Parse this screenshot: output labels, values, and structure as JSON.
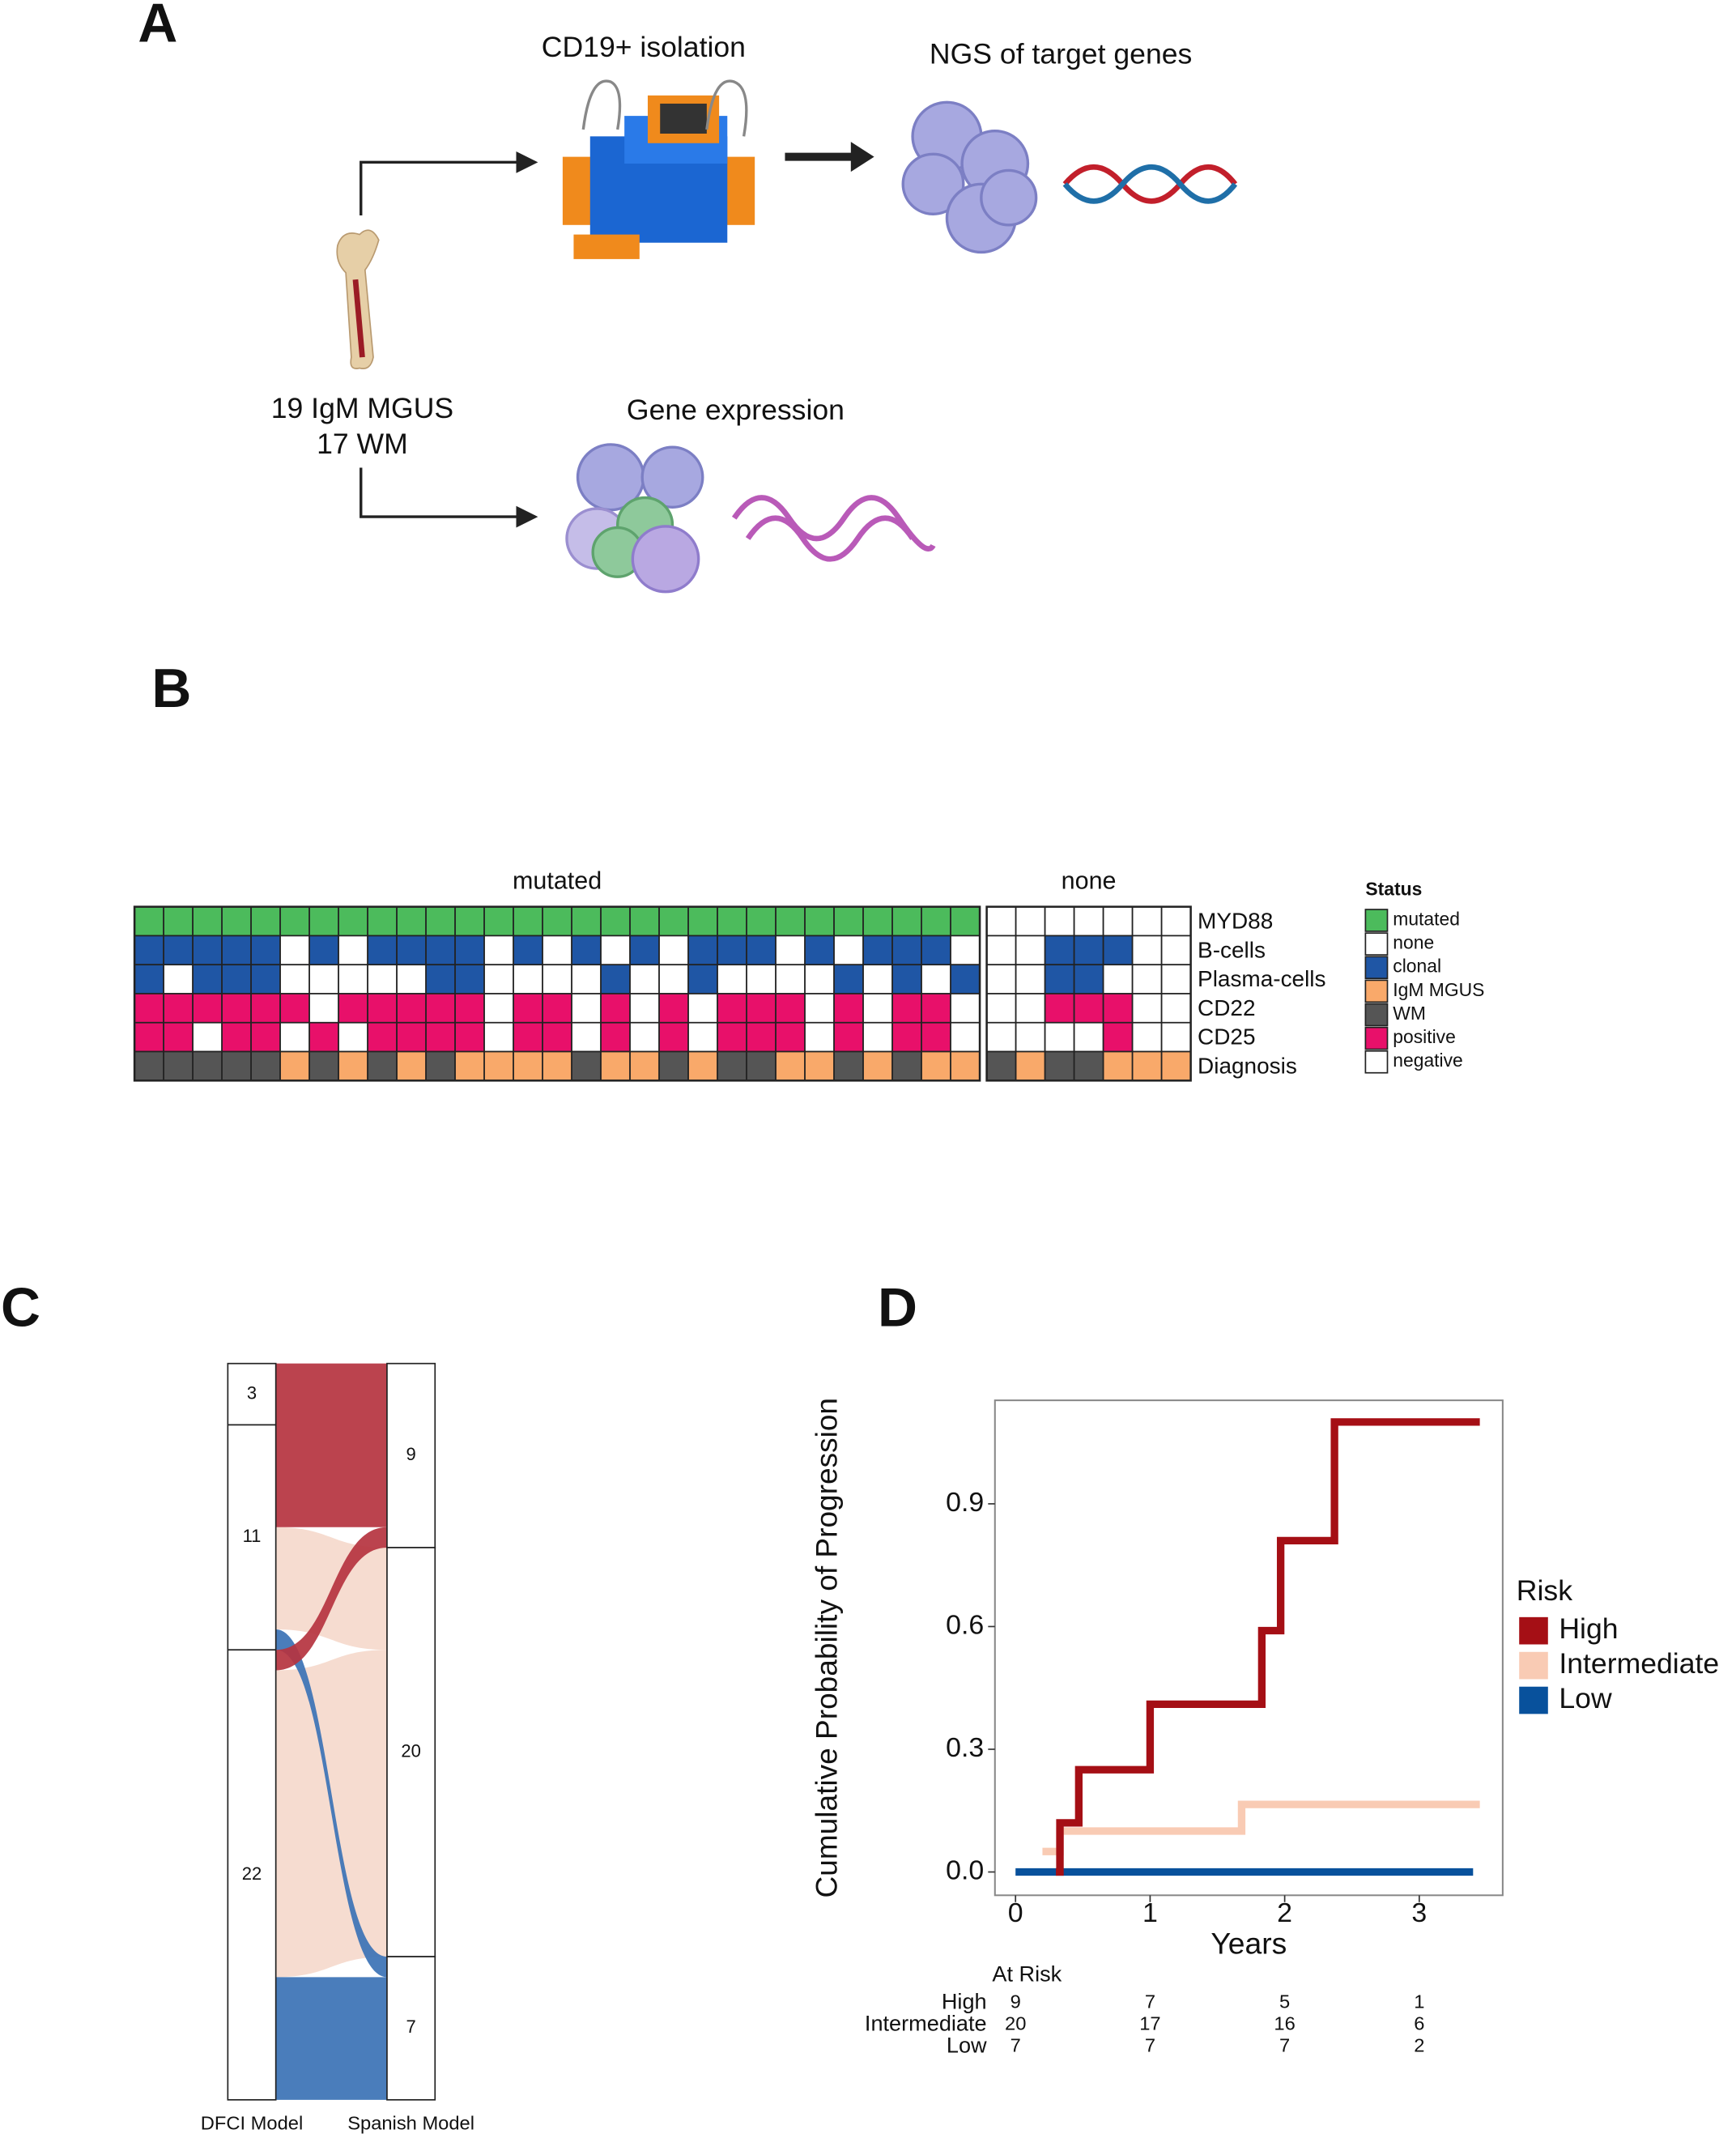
{
  "panel_a": {
    "label": "A",
    "isolation": "CD19+ isolation",
    "ngs": "NGS of target genes",
    "cohort": [
      "19 IgM MGUS",
      "17 WM"
    ],
    "expression": "Gene expression"
  },
  "panel_b": {
    "label": "B",
    "chart_data": {
      "type": "heatmap",
      "groups": [
        "mutated",
        "none"
      ],
      "rows": [
        {
          "label": "MYD88",
          "values": [
            [
              "mutated",
              "mutated",
              "mutated",
              "mutated",
              "mutated",
              "mutated",
              "mutated",
              "mutated",
              "mutated",
              "mutated",
              "mutated",
              "mutated",
              "mutated",
              "mutated",
              "mutated",
              "mutated",
              "mutated",
              "mutated",
              "mutated",
              "mutated",
              "mutated",
              "mutated",
              "mutated",
              "mutated",
              "mutated",
              "mutated",
              "mutated",
              "mutated",
              "mutated"
            ],
            [
              "none",
              "none",
              "none",
              "none",
              "none",
              "none",
              "none"
            ]
          ]
        },
        {
          "label": "B-cells",
          "values": [
            [
              "clonal",
              "clonal",
              "clonal",
              "clonal",
              "clonal",
              "none",
              "clonal",
              "none",
              "clonal",
              "clonal",
              "clonal",
              "clonal",
              "none",
              "clonal",
              "none",
              "clonal",
              "none",
              "clonal",
              "none",
              "clonal",
              "clonal",
              "clonal",
              "none",
              "clonal",
              "none",
              "clonal",
              "clonal",
              "clonal",
              "none"
            ],
            [
              "none",
              "none",
              "clonal",
              "clonal",
              "clonal",
              "none",
              "none"
            ]
          ]
        },
        {
          "label": "Plasma-cells",
          "values": [
            [
              "clonal",
              "none",
              "clonal",
              "clonal",
              "clonal",
              "none",
              "none",
              "none",
              "none",
              "none",
              "clonal",
              "clonal",
              "none",
              "none",
              "none",
              "none",
              "clonal",
              "none",
              "none",
              "clonal",
              "none",
              "none",
              "none",
              "none",
              "clonal",
              "none",
              "clonal",
              "none",
              "clonal"
            ],
            [
              "none",
              "none",
              "clonal",
              "clonal",
              "none",
              "none",
              "none"
            ]
          ]
        },
        {
          "label": "CD22",
          "values": [
            [
              "positive",
              "positive",
              "positive",
              "positive",
              "positive",
              "positive",
              "negative",
              "positive",
              "positive",
              "positive",
              "positive",
              "positive",
              "negative",
              "positive",
              "positive",
              "negative",
              "positive",
              "negative",
              "positive",
              "negative",
              "positive",
              "positive",
              "positive",
              "negative",
              "positive",
              "negative",
              "positive",
              "positive",
              "negative"
            ],
            [
              "negative",
              "negative",
              "positive",
              "positive",
              "positive",
              "negative",
              "negative"
            ]
          ]
        },
        {
          "label": "CD25",
          "values": [
            [
              "positive",
              "positive",
              "negative",
              "positive",
              "positive",
              "negative",
              "positive",
              "negative",
              "positive",
              "positive",
              "positive",
              "positive",
              "negative",
              "positive",
              "positive",
              "negative",
              "positive",
              "negative",
              "positive",
              "negative",
              "positive",
              "positive",
              "positive",
              "negative",
              "positive",
              "negative",
              "positive",
              "positive",
              "negative"
            ],
            [
              "negative",
              "negative",
              "negative",
              "negative",
              "positive",
              "negative",
              "negative"
            ]
          ]
        },
        {
          "label": "Diagnosis",
          "values": [
            [
              "WM",
              "WM",
              "WM",
              "WM",
              "WM",
              "IgM MGUS",
              "WM",
              "IgM MGUS",
              "WM",
              "IgM MGUS",
              "WM",
              "IgM MGUS",
              "IgM MGUS",
              "IgM MGUS",
              "IgM MGUS",
              "WM",
              "IgM MGUS",
              "IgM MGUS",
              "WM",
              "IgM MGUS",
              "WM",
              "WM",
              "IgM MGUS",
              "IgM MGUS",
              "WM",
              "IgM MGUS",
              "WM",
              "IgM MGUS",
              "IgM MGUS"
            ],
            [
              "WM",
              "IgM MGUS",
              "WM",
              "WM",
              "IgM MGUS",
              "IgM MGUS",
              "IgM MGUS"
            ]
          ]
        }
      ],
      "legend": {
        "title": "Status",
        "items": [
          {
            "label": "mutated",
            "color": "#4cbb5c"
          },
          {
            "label": "none",
            "color": "#ffffff"
          },
          {
            "label": "clonal",
            "color": "#1f56a5"
          },
          {
            "label": "IgM MGUS",
            "color": "#f9a96a"
          },
          {
            "label": "WM",
            "color": "#555555"
          },
          {
            "label": "positive",
            "color": "#e8106a"
          },
          {
            "label": "negative",
            "color": "#ffffff"
          }
        ]
      }
    }
  },
  "panel_c": {
    "label": "C",
    "chart_data": {
      "type": "alluvial",
      "axes": [
        {
          "name": "DFCI Model",
          "strata": [
            3,
            11,
            22
          ]
        },
        {
          "name": "Spanish Model",
          "strata": [
            9,
            20,
            7
          ]
        }
      ],
      "flows": [
        {
          "from": 0,
          "to": 0,
          "value": 3,
          "color": "#b5333f"
        },
        {
          "from": 1,
          "to": 0,
          "value": 5,
          "color": "#b5333f"
        },
        {
          "from": 1,
          "to": 1,
          "value": 5,
          "color": "#f5d9cc"
        },
        {
          "from": 1,
          "to": 2,
          "value": 1,
          "color": "#3b72b5"
        },
        {
          "from": 2,
          "to": 0,
          "value": 1,
          "color": "#b5333f"
        },
        {
          "from": 2,
          "to": 1,
          "value": 15,
          "color": "#f5d9cc"
        },
        {
          "from": 2,
          "to": 2,
          "value": 6,
          "color": "#3b72b5"
        }
      ]
    }
  },
  "panel_d": {
    "label": "D",
    "chart_data": {
      "type": "step",
      "y_label": "Cumulative Probability of Progression",
      "x_label": "Years",
      "xlim": [
        -0.153,
        3.62
      ],
      "ylim": [
        -0.057,
        1.153
      ],
      "xticks": [
        0,
        1,
        2,
        3
      ],
      "yticks": [
        {
          "value": 0,
          "label": "0.0"
        },
        0.3,
        0.6,
        0.9
      ],
      "legend_title": "Risk",
      "series": [
        {
          "name": "High",
          "color": "#a50f15",
          "x": [
            0.3,
            0.33,
            0.47,
            1,
            1.83,
            1.97,
            2.37,
            3.45
          ],
          "values": [
            0,
            0.12,
            0.25,
            0.41,
            0.59,
            0.81,
            1.1,
            1.1
          ]
        },
        {
          "name": "Intermediate",
          "color": "#f9cbb4",
          "x": [
            0.2,
            0.33,
            1.68,
            3.45
          ],
          "values": [
            0.05,
            0.1,
            0.165,
            0.165
          ]
        },
        {
          "name": "Low",
          "color": "#08519c",
          "x": [
            0,
            3.4
          ],
          "values": [
            0,
            0
          ]
        }
      ],
      "risk_table": {
        "title": "At Risk",
        "rows": [
          {
            "name": "High",
            "values": [
              9,
              7,
              5,
              1
            ]
          },
          {
            "name": "Intermediate",
            "values": [
              20,
              17,
              16,
              6
            ]
          },
          {
            "name": "Low",
            "values": [
              7,
              7,
              7,
              2
            ]
          }
        ]
      }
    }
  }
}
